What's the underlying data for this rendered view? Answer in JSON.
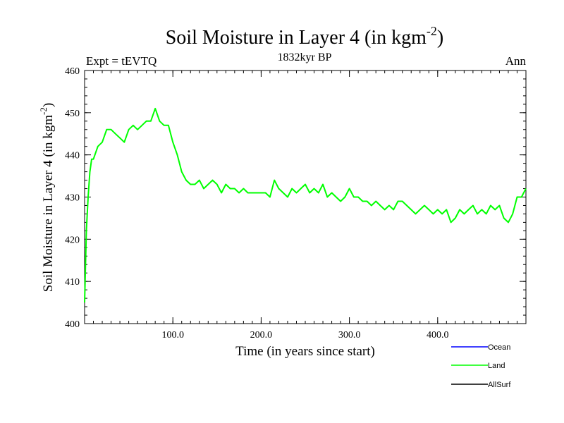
{
  "chart_data": {
    "type": "line",
    "title": "Soil Moisture in Layer 4 (in kgm",
    "title_sup": "-2",
    "title_close": ")",
    "subtitle": "1832kyr BP",
    "left_label": "Expt = tEVTQ",
    "right_label": "Ann",
    "xlabel": "Time (in years since start)",
    "ylabel": "Soil Moisture in Layer 4 (in kgm",
    "ylabel_sup": "-2",
    "ylabel_close": ")",
    "xlim": [
      0,
      500
    ],
    "ylim": [
      400,
      460
    ],
    "x_ticks": [
      100,
      200,
      300,
      400
    ],
    "x_tick_labels": [
      "100.0",
      "200.0",
      "300.0",
      "400.0"
    ],
    "y_ticks": [
      400,
      410,
      420,
      430,
      440,
      450,
      460
    ],
    "y_tick_labels": [
      "400",
      "410",
      "420",
      "430",
      "440",
      "450",
      "460"
    ],
    "legend": [
      {
        "name": "Ocean",
        "color": "#0000ff"
      },
      {
        "name": "Land",
        "color": "#00ff00"
      },
      {
        "name": "AllSurf",
        "color": "#000000"
      }
    ],
    "series": [
      {
        "name": "Land",
        "color": "#00ff00",
        "x": [
          0,
          2,
          4,
          6,
          8,
          10,
          15,
          20,
          25,
          30,
          35,
          40,
          45,
          50,
          55,
          60,
          65,
          70,
          75,
          80,
          85,
          90,
          95,
          100,
          105,
          110,
          115,
          120,
          125,
          130,
          135,
          140,
          145,
          150,
          155,
          160,
          165,
          170,
          175,
          180,
          185,
          190,
          195,
          200,
          205,
          210,
          215,
          220,
          225,
          230,
          235,
          240,
          245,
          250,
          255,
          260,
          265,
          270,
          275,
          280,
          285,
          290,
          295,
          300,
          305,
          310,
          315,
          320,
          325,
          330,
          335,
          340,
          345,
          350,
          355,
          360,
          365,
          370,
          375,
          380,
          385,
          390,
          395,
          400,
          405,
          410,
          415,
          420,
          425,
          430,
          435,
          440,
          445,
          450,
          455,
          460,
          465,
          470,
          475,
          480,
          485,
          490,
          495,
          500
        ],
        "y": [
          405,
          422,
          430,
          436,
          439,
          439,
          442,
          443,
          446,
          446,
          445,
          444,
          443,
          446,
          447,
          446,
          447,
          448,
          448,
          451,
          448,
          447,
          447,
          443,
          440,
          436,
          434,
          433,
          433,
          434,
          432,
          433,
          434,
          433,
          431,
          433,
          432,
          432,
          431,
          432,
          431,
          431,
          431,
          431,
          431,
          430,
          434,
          432,
          431,
          430,
          432,
          431,
          432,
          433,
          431,
          432,
          431,
          433,
          430,
          431,
          430,
          429,
          430,
          432,
          430,
          430,
          429,
          429,
          428,
          429,
          428,
          427,
          428,
          427,
          429,
          429,
          428,
          427,
          426,
          427,
          428,
          427,
          426,
          427,
          426,
          427,
          424,
          425,
          427,
          426,
          427,
          428,
          426,
          427,
          426,
          428,
          427,
          428,
          425,
          424,
          426,
          430,
          430,
          432
        ]
      }
    ]
  }
}
